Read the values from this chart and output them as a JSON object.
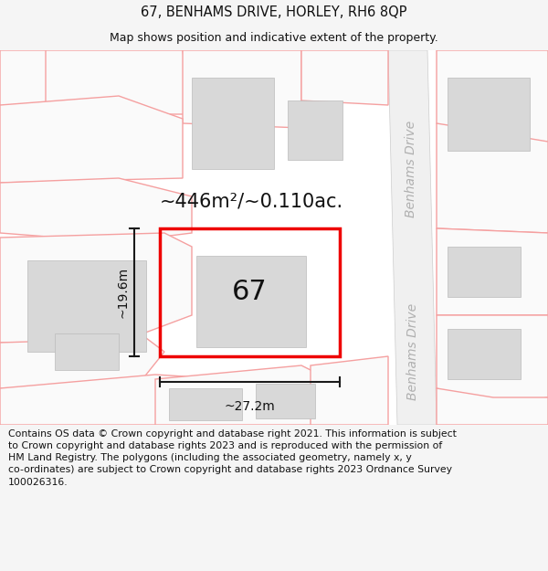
{
  "title": "67, BENHAMS DRIVE, HORLEY, RH6 8QP",
  "subtitle": "Map shows position and indicative extent of the property.",
  "footer": "Contains OS data © Crown copyright and database right 2021. This information is subject\nto Crown copyright and database rights 2023 and is reproduced with the permission of\nHM Land Registry. The polygons (including the associated geometry, namely x, y\nco-ordinates) are subject to Crown copyright and database rights 2023 Ordnance Survey\n100026316.",
  "background_color": "#f5f5f5",
  "title_fontsize": 10.5,
  "subtitle_fontsize": 9,
  "footer_fontsize": 7.8,
  "plot_label": "67",
  "plot_label_fontsize": 22,
  "area_text": "~446m²/~0.110ac.",
  "area_fontsize": 15,
  "width_text": "~27.2m",
  "height_text": "~19.6m",
  "dim_fontsize": 10,
  "road_label": "Benhams Drive",
  "road_label_fontsize": 10,
  "red_color": "#ee0000",
  "pink_color": "#f5a0a0",
  "gray_block_color": "#d8d8d8",
  "dim_line_color": "#1a1a1a"
}
